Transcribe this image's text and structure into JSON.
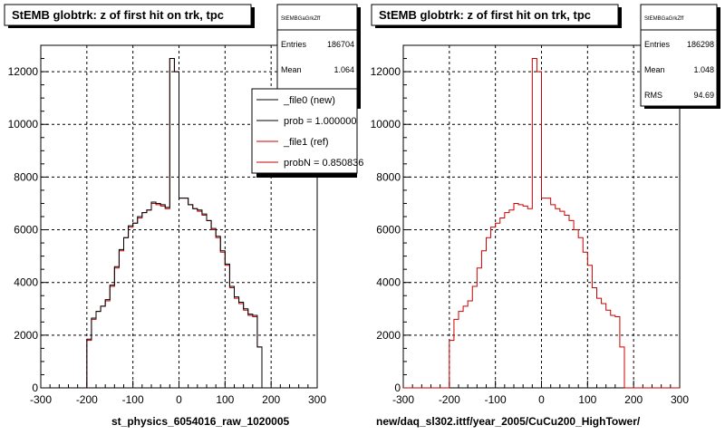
{
  "colors": {
    "background": "#ffffff",
    "new_series": "#000000",
    "ref_series": "#cc0000"
  },
  "footer_faint": "",
  "chart_data": [
    {
      "type": "histogram",
      "title": "StEMB globtrk: z of first hit on trk, tpc",
      "xlabel": "st_physics_6054016_raw_1020005",
      "ylabel": "",
      "xlim": [
        -300,
        300
      ],
      "ylim": [
        0,
        13000
      ],
      "x_ticks": [
        -300,
        -200,
        -100,
        0,
        100,
        200,
        300
      ],
      "y_ticks": [
        0,
        2000,
        4000,
        6000,
        8000,
        10000,
        12000
      ],
      "grid": true,
      "bin_edges": [
        -300,
        -290,
        -280,
        -270,
        -260,
        -250,
        -240,
        -230,
        -220,
        -210,
        -200,
        -190,
        -180,
        -170,
        -160,
        -150,
        -140,
        -130,
        -120,
        -110,
        -100,
        -90,
        -80,
        -70,
        -60,
        -50,
        -40,
        -30,
        -20,
        -10,
        0,
        10,
        20,
        30,
        40,
        50,
        60,
        70,
        80,
        90,
        100,
        110,
        120,
        130,
        140,
        150,
        160,
        170,
        180,
        190,
        200,
        210,
        220,
        230,
        240,
        250,
        260,
        270,
        280,
        290,
        300
      ],
      "stats": {
        "name": "StEMBGaGrkZff",
        "entries_label": "Entries",
        "entries": "186704",
        "mean_label": "Mean",
        "mean": "1.064"
      },
      "legend": [
        {
          "label": "_file0 (new)",
          "color": "#000000"
        },
        {
          "label": "prob = 1.000000",
          "color": "#000000"
        },
        {
          "label": "_file1 (ref)",
          "color": "#cc0000"
        },
        {
          "label": "probN = 0.850836",
          "color": "#cc0000"
        }
      ],
      "series": [
        {
          "name": "_file0 (new)",
          "color": "#000000",
          "values": [
            0,
            0,
            0,
            0,
            0,
            0,
            0,
            0,
            0,
            0,
            1850,
            2650,
            2900,
            3100,
            3350,
            3900,
            4600,
            5250,
            5700,
            6150,
            6250,
            6500,
            6650,
            6750,
            7050,
            7000,
            6950,
            6850,
            12500,
            12000,
            7200,
            7200,
            6950,
            6800,
            6750,
            6600,
            6350,
            6050,
            5750,
            5200,
            4700,
            3850,
            3450,
            3250,
            3000,
            2800,
            2750,
            1550,
            0,
            0,
            0,
            0,
            0,
            0,
            0,
            0,
            0,
            0,
            0,
            0
          ]
        },
        {
          "name": "_file1 (ref)",
          "color": "#cc0000",
          "values": [
            0,
            0,
            0,
            0,
            0,
            0,
            0,
            0,
            0,
            0,
            1800,
            2600,
            2900,
            3100,
            3300,
            3850,
            4550,
            5200,
            5700,
            6100,
            6250,
            6450,
            6650,
            6750,
            7000,
            6950,
            6900,
            6800,
            12500,
            12000,
            7200,
            7200,
            6950,
            6800,
            6700,
            6550,
            6350,
            6000,
            5700,
            5150,
            4650,
            3800,
            3400,
            3200,
            2950,
            2750,
            2700,
            1550,
            0,
            0,
            0,
            0,
            0,
            0,
            0,
            0,
            0,
            0,
            0,
            0
          ]
        }
      ]
    },
    {
      "type": "histogram",
      "title": "StEMB globtrk: z of first hit on trk, tpc",
      "xlabel": "new/daq_sl302.ittf/year_2005/CuCu200_HighTower/",
      "ylabel": "",
      "xlim": [
        -300,
        300
      ],
      "ylim": [
        0,
        13000
      ],
      "x_ticks": [
        -300,
        -200,
        -100,
        0,
        100,
        200,
        300
      ],
      "y_ticks": [
        0,
        2000,
        4000,
        6000,
        8000,
        10000,
        12000
      ],
      "grid": true,
      "bin_edges": [
        -300,
        -290,
        -280,
        -270,
        -260,
        -250,
        -240,
        -230,
        -220,
        -210,
        -200,
        -190,
        -180,
        -170,
        -160,
        -150,
        -140,
        -130,
        -120,
        -110,
        -100,
        -90,
        -80,
        -70,
        -60,
        -50,
        -40,
        -30,
        -20,
        -10,
        0,
        10,
        20,
        30,
        40,
        50,
        60,
        70,
        80,
        90,
        100,
        110,
        120,
        130,
        140,
        150,
        160,
        170,
        180,
        190,
        200,
        210,
        220,
        230,
        240,
        250,
        260,
        270,
        280,
        290,
        300
      ],
      "stats": {
        "name": "StEMBGaGrkZff",
        "entries_label": "Entries",
        "entries": "186298",
        "mean_label": "Mean",
        "mean": "1.048",
        "rms_label": "RMS",
        "rms": "94.69"
      },
      "legend": [],
      "series": [
        {
          "name": "",
          "color": "#cc0000",
          "values": [
            0,
            0,
            0,
            0,
            0,
            0,
            0,
            0,
            0,
            0,
            1800,
            2600,
            2900,
            3100,
            3300,
            3850,
            4550,
            5200,
            5700,
            6100,
            6250,
            6450,
            6650,
            6750,
            7000,
            6950,
            6900,
            6800,
            12500,
            12000,
            7200,
            7200,
            6950,
            6800,
            6700,
            6550,
            6350,
            6000,
            5700,
            5150,
            4650,
            3800,
            3400,
            3200,
            2950,
            2750,
            2700,
            1550,
            0,
            0,
            0,
            0,
            0,
            0,
            0,
            0,
            0,
            0,
            0,
            0
          ]
        }
      ]
    }
  ]
}
